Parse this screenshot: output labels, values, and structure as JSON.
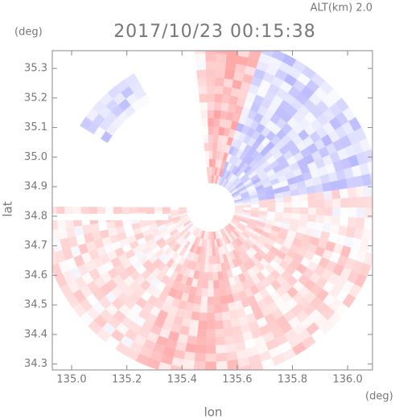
{
  "chart_data": {
    "type": "radar-map",
    "title": "2017/10/23 00:15:38",
    "subtitle": "ALT(km) 2.0",
    "x_label": "lon",
    "y_label": "lat",
    "x_unit": "(deg)",
    "y_unit": "(deg)",
    "xlim": [
      134.93,
      136.09
    ],
    "ylim": [
      34.28,
      35.36
    ],
    "xticks": [
      {
        "value": 135,
        "label": "135.0"
      },
      135.2,
      135.4,
      135.6,
      135.8,
      {
        "value": 136,
        "label": "136.0"
      }
    ],
    "yticks": [
      34.3,
      34.4,
      34.5,
      34.6,
      34.7,
      34.8,
      34.9,
      {
        "value": 35,
        "label": "35.0"
      },
      35.1,
      35.2,
      35.3
    ]
  }
}
